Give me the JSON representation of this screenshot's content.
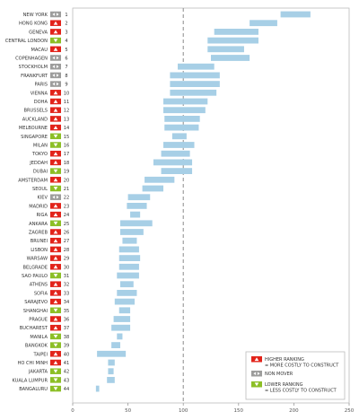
{
  "chart_data": {
    "type": "bar",
    "orientation": "horizontal",
    "subtype": "floating-range",
    "xlim": [
      0,
      250
    ],
    "xticks": [
      0,
      50,
      100,
      150,
      200,
      250
    ],
    "reference_line": 100,
    "grid": false,
    "legend_position": "bottom-right",
    "status_colors": {
      "up": "#e2231a",
      "none": "#9d9d9c",
      "down": "#8cbf26"
    },
    "bar_color": "#a7cfe6",
    "rows": [
      {
        "city": "NEW YORK",
        "rank": "1",
        "status": "none",
        "range": [
          188,
          215
        ]
      },
      {
        "city": "HONG KONG",
        "rank": "2",
        "status": "up",
        "range": [
          160,
          185
        ]
      },
      {
        "city": "GENEVA",
        "rank": "3",
        "status": "up",
        "range": [
          128,
          168
        ]
      },
      {
        "city": "CENTRAL LONDON",
        "rank": "4",
        "status": "down",
        "range": [
          122,
          168
        ]
      },
      {
        "city": "MACAU",
        "rank": "5",
        "status": "up",
        "range": [
          122,
          155
        ]
      },
      {
        "city": "COPENHAGEN",
        "rank": "6",
        "status": "none",
        "range": [
          125,
          160
        ]
      },
      {
        "city": "STOCKHOLM",
        "rank": "7",
        "status": "none",
        "range": [
          95,
          128
        ]
      },
      {
        "city": "FRANKFURT",
        "rank": "8",
        "status": "none",
        "range": [
          88,
          133
        ]
      },
      {
        "city": "PARIS",
        "rank": "9",
        "status": "none",
        "range": [
          88,
          133
        ]
      },
      {
        "city": "VIENNA",
        "rank": "10",
        "status": "up",
        "range": [
          88,
          130
        ]
      },
      {
        "city": "DOHA",
        "rank": "11",
        "status": "up",
        "range": [
          82,
          122
        ]
      },
      {
        "city": "BRUSSELS",
        "rank": "12",
        "status": "up",
        "range": [
          82,
          120
        ]
      },
      {
        "city": "AUCKLAND",
        "rank": "13",
        "status": "up",
        "range": [
          83,
          115
        ]
      },
      {
        "city": "MELBOURNE",
        "rank": "14",
        "status": "up",
        "range": [
          83,
          114
        ]
      },
      {
        "city": "SINGAPORE",
        "rank": "15",
        "status": "down",
        "range": [
          90,
          103
        ]
      },
      {
        "city": "MILAN",
        "rank": "16",
        "status": "down",
        "range": [
          82,
          110
        ]
      },
      {
        "city": "TOKYO",
        "rank": "17",
        "status": "up",
        "range": [
          80,
          106
        ]
      },
      {
        "city": "JEDDAH",
        "rank": "18",
        "status": "up",
        "range": [
          73,
          108
        ]
      },
      {
        "city": "DUBAI",
        "rank": "19",
        "status": "down",
        "range": [
          80,
          108
        ]
      },
      {
        "city": "AMSTERDAM",
        "rank": "20",
        "status": "up",
        "range": [
          65,
          92
        ]
      },
      {
        "city": "SEOUL",
        "rank": "21",
        "status": "down",
        "range": [
          63,
          82
        ]
      },
      {
        "city": "KIEV",
        "rank": "22",
        "status": "none",
        "range": [
          50,
          70
        ]
      },
      {
        "city": "MADRID",
        "rank": "23",
        "status": "up",
        "range": [
          49,
          67
        ]
      },
      {
        "city": "RIGA",
        "rank": "24",
        "status": "up",
        "range": [
          52,
          61
        ]
      },
      {
        "city": "ANKARA",
        "rank": "25",
        "status": "down",
        "range": [
          43,
          72
        ]
      },
      {
        "city": "ZAGREB",
        "rank": "26",
        "status": "up",
        "range": [
          43,
          64
        ]
      },
      {
        "city": "BRUNEI",
        "rank": "27",
        "status": "up",
        "range": [
          45,
          58
        ]
      },
      {
        "city": "LISBON",
        "rank": "28",
        "status": "up",
        "range": [
          42,
          60
        ]
      },
      {
        "city": "WARSAW",
        "rank": "29",
        "status": "up",
        "range": [
          42,
          61
        ]
      },
      {
        "city": "BELGRADE",
        "rank": "30",
        "status": "up",
        "range": [
          42,
          60
        ]
      },
      {
        "city": "SAO PAULO",
        "rank": "31",
        "status": "down",
        "range": [
          40,
          60
        ]
      },
      {
        "city": "ATHENS",
        "rank": "32",
        "status": "up",
        "range": [
          43,
          55
        ]
      },
      {
        "city": "SOFIA",
        "rank": "33",
        "status": "up",
        "range": [
          40,
          58
        ]
      },
      {
        "city": "SARAJEVO",
        "rank": "34",
        "status": "up",
        "range": [
          38,
          56
        ]
      },
      {
        "city": "SHANGHAI",
        "rank": "35",
        "status": "down",
        "range": [
          42,
          52
        ]
      },
      {
        "city": "PRAGUE",
        "rank": "36",
        "status": "up",
        "range": [
          37,
          52
        ]
      },
      {
        "city": "BUCHAREST",
        "rank": "37",
        "status": "up",
        "range": [
          35,
          52
        ]
      },
      {
        "city": "MANILA",
        "rank": "38",
        "status": "down",
        "range": [
          40,
          45
        ]
      },
      {
        "city": "BANGKOK",
        "rank": "39",
        "status": "down",
        "range": [
          35,
          43
        ]
      },
      {
        "city": "TAIPEI",
        "rank": "40",
        "status": "up",
        "range": [
          22,
          48
        ]
      },
      {
        "city": "HO CHI MINH",
        "rank": "41",
        "status": "up",
        "range": [
          32,
          38
        ]
      },
      {
        "city": "JAKARTA",
        "rank": "42",
        "status": "down",
        "range": [
          32,
          37
        ]
      },
      {
        "city": "KUALA LUMPUR",
        "rank": "43",
        "status": "down",
        "range": [
          31,
          38
        ]
      },
      {
        "city": "BANGALURU",
        "rank": "44",
        "status": "down",
        "range": [
          21,
          24
        ]
      }
    ],
    "legend": [
      {
        "status": "up",
        "line1": "HIGHER RANKING",
        "line2": "= MORE COSTLY TO CONSTRUCT"
      },
      {
        "status": "none",
        "line1": "NON MOVER",
        "line2": ""
      },
      {
        "status": "down",
        "line1": "LOWER RANKING",
        "line2": "= LESS COSTLY TO CONSTRUCT"
      }
    ]
  }
}
